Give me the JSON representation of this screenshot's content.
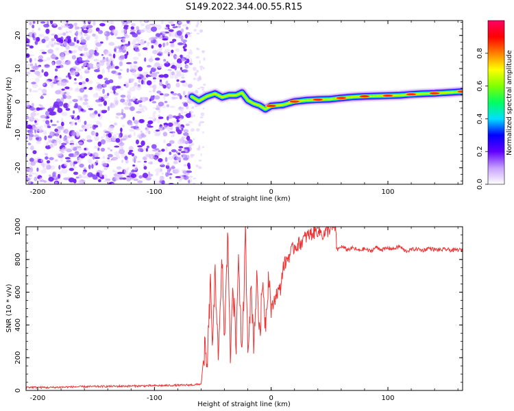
{
  "title": "S149.2022.344.00.55.R15",
  "chart_data": [
    {
      "type": "heatmap",
      "xlabel": "Height of straight line (km)",
      "ylabel": "Frequency (Hz)",
      "xlim": [
        -210,
        164
      ],
      "ylim": [
        -25,
        24.5
      ],
      "x_ticks": [
        -200,
        -100,
        0,
        100
      ],
      "y_ticks": [
        -20,
        -10,
        0,
        10,
        20
      ],
      "colorbar": {
        "label": "Normalized spectral amplitude",
        "range": [
          0,
          1
        ],
        "ticks": [
          0.0,
          0.2,
          0.4,
          0.6,
          0.8
        ],
        "colors": [
          "#ffffff",
          "#c8a0ff",
          "#6000ff",
          "#0000ff",
          "#00e0ff",
          "#00ff60",
          "#80ff00",
          "#ffff00",
          "#ff8000",
          "#ff0000",
          "#ff0066"
        ]
      },
      "noise_region_x": [
        -210,
        -70
      ],
      "signal_track": {
        "x": [
          -68,
          -62,
          -55,
          -48,
          -42,
          -36,
          -30,
          -25,
          -20,
          -15,
          -10,
          -5,
          0,
          10,
          20,
          30,
          40,
          50,
          60,
          70,
          80,
          90,
          100,
          110,
          120,
          130,
          140,
          150,
          164
        ],
        "y": [
          1.5,
          0.2,
          1.6,
          2.4,
          1.3,
          1.9,
          1.9,
          2.7,
          0.4,
          -0.6,
          -1.2,
          -2.3,
          -1.3,
          -1.0,
          0.0,
          0.4,
          0.6,
          0.7,
          1.1,
          1.4,
          1.6,
          1.7,
          1.8,
          1.9,
          2.2,
          2.4,
          2.5,
          2.7,
          3.0
        ]
      }
    },
    {
      "type": "line",
      "xlabel": "Height of straight line (km)",
      "ylabel": "SNR (10 * v/v)",
      "xlim": [
        -210,
        164
      ],
      "ylim": [
        0,
        1000
      ],
      "x_ticks": [
        -200,
        -100,
        0,
        100
      ],
      "y_ticks": [
        0,
        200,
        400,
        600,
        800,
        1000
      ],
      "series": [
        {
          "color": "#ee3333",
          "x": [
            -210,
            -190,
            -170,
            -150,
            -130,
            -110,
            -90,
            -75,
            -65,
            -60,
            -57,
            -55,
            -52,
            -50,
            -48,
            -45,
            -42,
            -40,
            -37,
            -35,
            -33,
            -30,
            -28,
            -25,
            -22,
            -20,
            -17,
            -15,
            -12,
            -10,
            -7,
            -5,
            -2,
            0,
            3,
            5,
            8,
            10,
            15,
            20,
            25,
            30,
            35,
            40,
            45,
            50,
            55,
            56,
            57,
            60,
            65,
            70,
            75,
            80,
            85,
            90,
            95,
            100,
            105,
            110,
            115,
            120,
            125,
            130,
            135,
            140,
            145,
            150,
            155,
            160,
            164
          ],
          "values": [
            20,
            18,
            22,
            24,
            26,
            28,
            30,
            32,
            35,
            40,
            260,
            120,
            650,
            250,
            720,
            200,
            800,
            300,
            980,
            150,
            700,
            250,
            850,
            180,
            950,
            280,
            620,
            300,
            700,
            330,
            680,
            400,
            720,
            480,
            560,
            600,
            620,
            750,
            820,
            880,
            900,
            940,
            960,
            980,
            950,
            990,
            1000,
            870,
            860,
            880,
            860,
            870,
            855,
            865,
            850,
            875,
            860,
            870,
            865,
            880,
            850,
            860,
            865,
            855,
            870,
            860,
            858,
            862,
            855,
            860,
            856
          ]
        }
      ]
    }
  ]
}
